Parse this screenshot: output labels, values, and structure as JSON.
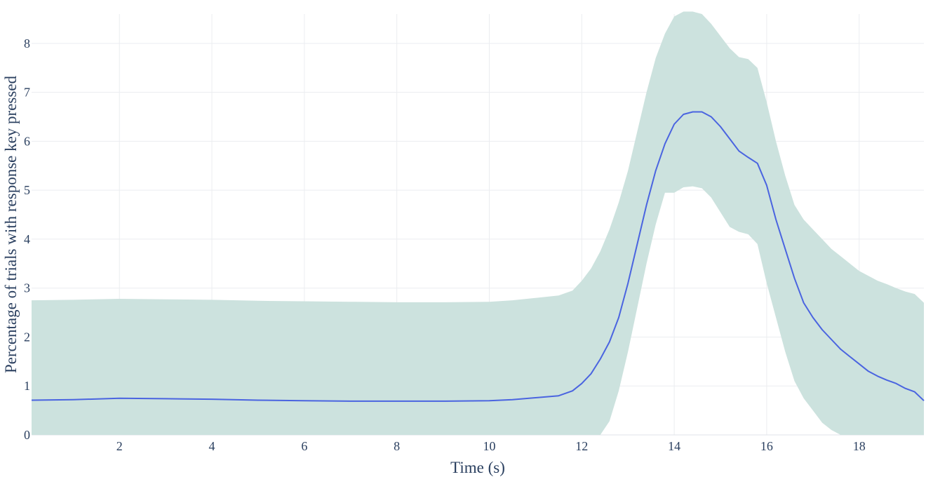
{
  "chart_data": {
    "type": "area",
    "title": "",
    "xlabel": "Time (s)",
    "ylabel": "Percentage of trials with response key pressed",
    "xlim": [
      0.1,
      19.4
    ],
    "ylim": [
      0,
      8.6
    ],
    "xticks": [
      2,
      4,
      6,
      8,
      10,
      12,
      14,
      16,
      18
    ],
    "yticks": [
      0,
      1,
      2,
      3,
      4,
      5,
      6,
      7,
      8
    ],
    "grid": true,
    "legend": "none",
    "colors": {
      "line": "#4a64e0",
      "band": "#cce2de",
      "grid": "#ebedf0",
      "text": "#2a3f5f"
    },
    "series": [
      {
        "role": "mean",
        "x": [
          0.1,
          1,
          2,
          3,
          4,
          5,
          6,
          7,
          8,
          9,
          10,
          10.5,
          11,
          11.5,
          11.8,
          12,
          12.2,
          12.4,
          12.6,
          12.8,
          13,
          13.2,
          13.4,
          13.6,
          13.8,
          14,
          14.2,
          14.4,
          14.6,
          14.8,
          15,
          15.2,
          15.4,
          15.6,
          15.8,
          16,
          16.2,
          16.4,
          16.6,
          16.8,
          17,
          17.2,
          17.4,
          17.6,
          17.8,
          18,
          18.2,
          18.4,
          18.6,
          18.8,
          19,
          19.2,
          19.4
        ],
        "y": [
          0.71,
          0.72,
          0.75,
          0.74,
          0.73,
          0.71,
          0.7,
          0.69,
          0.69,
          0.69,
          0.7,
          0.72,
          0.76,
          0.8,
          0.9,
          1.05,
          1.25,
          1.55,
          1.9,
          2.4,
          3.1,
          3.9,
          4.7,
          5.4,
          5.95,
          6.35,
          6.55,
          6.6,
          6.6,
          6.5,
          6.3,
          6.05,
          5.8,
          5.67,
          5.55,
          5.1,
          4.4,
          3.8,
          3.2,
          2.7,
          2.4,
          2.15,
          1.95,
          1.75,
          1.6,
          1.45,
          1.3,
          1.2,
          1.12,
          1.05,
          0.95,
          0.88,
          0.7
        ]
      },
      {
        "role": "upper",
        "x": [
          0.1,
          1,
          2,
          3,
          4,
          5,
          6,
          7,
          8,
          9,
          10,
          10.5,
          11,
          11.5,
          11.8,
          12,
          12.2,
          12.4,
          12.6,
          12.8,
          13,
          13.2,
          13.4,
          13.6,
          13.8,
          14,
          14.2,
          14.4,
          14.6,
          14.8,
          15,
          15.2,
          15.4,
          15.6,
          15.8,
          16,
          16.2,
          16.4,
          16.6,
          16.8,
          17,
          17.2,
          17.4,
          17.6,
          17.8,
          18,
          18.2,
          18.4,
          18.6,
          18.8,
          19,
          19.2,
          19.4
        ],
        "y": [
          2.75,
          2.76,
          2.78,
          2.77,
          2.76,
          2.74,
          2.73,
          2.72,
          2.71,
          2.71,
          2.72,
          2.75,
          2.8,
          2.85,
          2.95,
          3.15,
          3.4,
          3.75,
          4.2,
          4.75,
          5.4,
          6.2,
          7.0,
          7.7,
          8.2,
          8.55,
          8.65,
          8.65,
          8.6,
          8.4,
          8.15,
          7.9,
          7.72,
          7.68,
          7.5,
          6.8,
          6.0,
          5.3,
          4.7,
          4.4,
          4.2,
          4.0,
          3.8,
          3.65,
          3.5,
          3.35,
          3.25,
          3.15,
          3.08,
          3.0,
          2.93,
          2.88,
          2.7
        ]
      },
      {
        "role": "lower",
        "x": [
          0.1,
          1,
          2,
          3,
          4,
          5,
          6,
          7,
          8,
          9,
          10,
          10.5,
          11,
          11.5,
          11.8,
          12,
          12.2,
          12.4,
          12.6,
          12.8,
          13,
          13.2,
          13.4,
          13.6,
          13.8,
          14,
          14.2,
          14.4,
          14.6,
          14.8,
          15,
          15.2,
          15.4,
          15.6,
          15.8,
          16,
          16.2,
          16.4,
          16.6,
          16.8,
          17,
          17.2,
          17.4,
          17.6,
          17.8,
          18,
          18.2,
          18.4,
          18.6,
          18.8,
          19,
          19.2,
          19.4
        ],
        "y": [
          0,
          0,
          0,
          0,
          0,
          0,
          0,
          0,
          0,
          0,
          0,
          0,
          0,
          0,
          0,
          0,
          0,
          0,
          0.28,
          0.9,
          1.7,
          2.6,
          3.5,
          4.3,
          4.95,
          4.95,
          5.06,
          5.08,
          5.04,
          4.85,
          4.55,
          4.25,
          4.15,
          4.1,
          3.9,
          3.1,
          2.4,
          1.7,
          1.1,
          0.75,
          0.5,
          0.25,
          0.1,
          0,
          0,
          0,
          0,
          0,
          0,
          0,
          0,
          0,
          0
        ]
      }
    ]
  }
}
